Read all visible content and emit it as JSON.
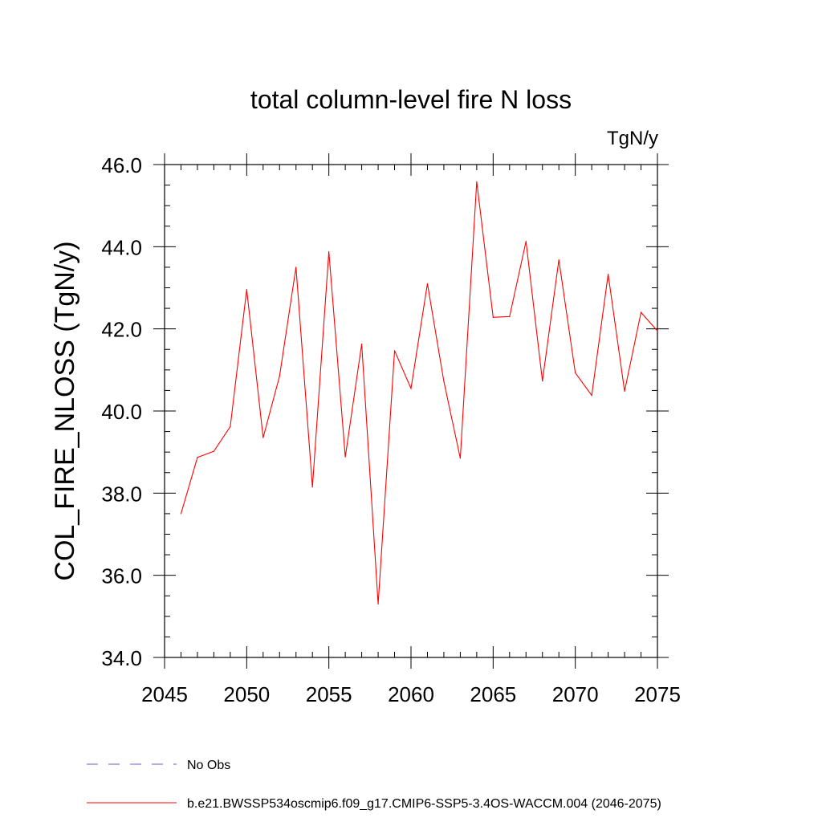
{
  "chart_data": {
    "type": "line",
    "title": "total column-level fire N loss",
    "units_label": "TgN/y",
    "xlabel": "",
    "ylabel": "COL_FIRE_NLOSS  (TgN/y)",
    "xlim": [
      2045,
      2075
    ],
    "ylim": [
      34.0,
      46.0
    ],
    "x_major_ticks": [
      2045,
      2050,
      2055,
      2060,
      2065,
      2070,
      2075
    ],
    "x_tick_labels": [
      "2045",
      "2050",
      "2055",
      "2060",
      "2065",
      "2070",
      "2075"
    ],
    "y_major_ticks": [
      34.0,
      36.0,
      38.0,
      40.0,
      42.0,
      44.0,
      46.0
    ],
    "y_tick_labels": [
      "34.0",
      "36.0",
      "38.0",
      "40.0",
      "42.0",
      "44.0",
      "46.0"
    ],
    "x_minor_step": 1,
    "y_minor_step": 0.5,
    "grid": false,
    "legend_position": "bottom-left",
    "series": [
      {
        "name": "b.e21.BWSSP534oscmip6.f09_g17.CMIP6-SSP5-3.4OS-WACCM.004 (2046-2075)",
        "color": "#ff0000",
        "style": "solid",
        "x": [
          2046,
          2047,
          2048,
          2049,
          2050,
          2051,
          2052,
          2053,
          2054,
          2055,
          2056,
          2057,
          2058,
          2059,
          2060,
          2061,
          2062,
          2063,
          2064,
          2065,
          2066,
          2067,
          2068,
          2069,
          2070,
          2071,
          2072,
          2073,
          2074,
          2075
        ],
        "values": [
          37.5,
          38.87,
          39.02,
          39.62,
          42.96,
          39.35,
          40.85,
          43.5,
          38.15,
          43.88,
          38.88,
          41.63,
          35.3,
          41.47,
          40.55,
          43.1,
          40.72,
          38.85,
          45.58,
          42.28,
          42.3,
          44.13,
          40.73,
          43.68,
          40.93,
          40.38,
          43.33,
          40.48,
          42.4,
          41.95
        ]
      },
      {
        "name": "No Obs",
        "color": "#6a5acd",
        "style": "dashed",
        "x": [],
        "values": []
      }
    ]
  }
}
